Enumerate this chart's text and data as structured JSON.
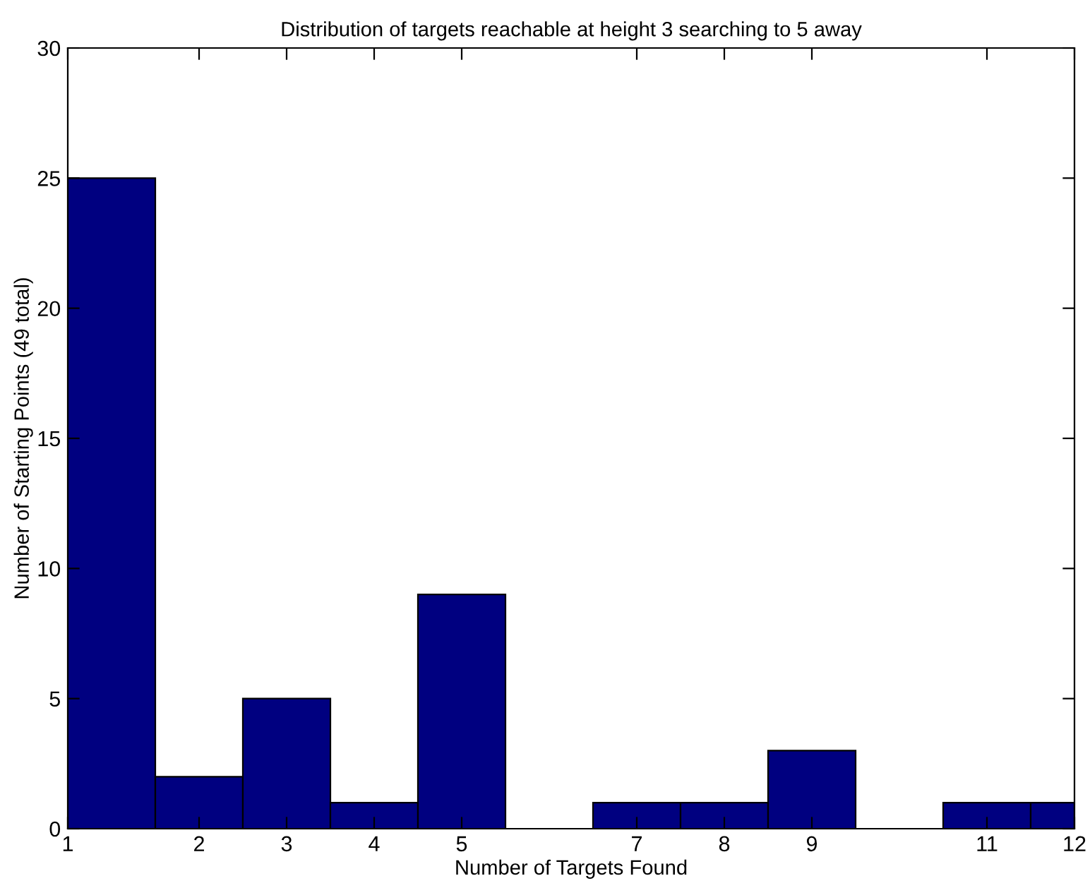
{
  "chart_data": {
    "type": "histogram",
    "title": "Distribution of targets reachable at height 3 searching to 5 away",
    "xlabel": "Number of Targets Found",
    "ylabel": "Number of Starting Points (49 total)",
    "bins": [
      1,
      2,
      3,
      4,
      5,
      6,
      7,
      8,
      9,
      10,
      11,
      12,
      12.5
    ],
    "values": [
      25,
      2,
      5,
      1,
      9,
      0,
      1,
      1,
      3,
      0,
      1,
      1
    ],
    "color": "#000080",
    "xlim": [
      1,
      12.5
    ],
    "xticks": [
      1,
      {
        "value": 2.5,
        "label": "2"
      },
      {
        "value": 3.5,
        "label": "3"
      },
      {
        "value": 4.5,
        "label": "4"
      },
      {
        "value": 5.5,
        "label": "5"
      },
      {
        "value": 7.5,
        "label": "7"
      },
      {
        "value": 8.5,
        "label": "8"
      },
      {
        "value": 9.5,
        "label": "9"
      },
      {
        "value": 11.5,
        "label": "11"
      },
      {
        "value": 12.5,
        "label": "12"
      }
    ],
    "ylim": [
      0,
      30
    ],
    "yticks": [
      0,
      5,
      10,
      15,
      20,
      25,
      30
    ],
    "grid": false
  }
}
